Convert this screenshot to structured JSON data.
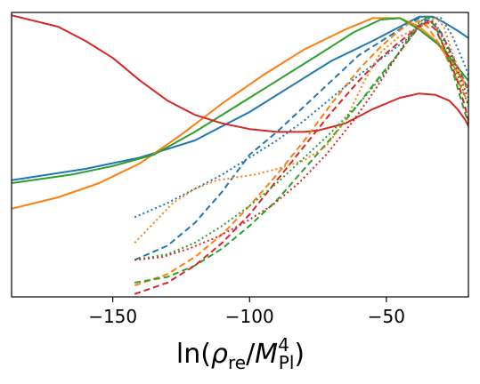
{
  "chart_data": {
    "type": "line",
    "title": "",
    "xlabel": "ln(ρ_re/M_Pl^4)",
    "xlabel_parts": {
      "fn": "ln(",
      "rho": "ρ",
      "rho_sub": "re",
      "slash": "/",
      "M": "M",
      "M_sub": "Pl",
      "M_sup": "4",
      "close": ")"
    },
    "ylabel": "",
    "xlim": [
      -187,
      -20
    ],
    "ylim": [
      0,
      1
    ],
    "xticks": [
      -150,
      -100,
      -50
    ],
    "xtick_labels": [
      "−150",
      "−100",
      "−50"
    ],
    "yticks": [],
    "grid": false,
    "legend": "none",
    "colors": {
      "blue": "#1f77b4",
      "orange": "#ff7f0e",
      "green": "#2ca02c",
      "red": "#d62728"
    },
    "series": [
      {
        "color": "blue",
        "style": "solid",
        "points": [
          [
            -187,
            0.41
          ],
          [
            -160,
            0.45
          ],
          [
            -140,
            0.49
          ],
          [
            -120,
            0.55
          ],
          [
            -100,
            0.65
          ],
          [
            -85,
            0.74
          ],
          [
            -70,
            0.83
          ],
          [
            -55,
            0.9
          ],
          [
            -45,
            0.95
          ],
          [
            -38,
            0.985
          ],
          [
            -33,
            0.985
          ],
          [
            -28,
            0.96
          ],
          [
            -23,
            0.93
          ],
          [
            -20,
            0.91
          ]
        ]
      },
      {
        "color": "orange",
        "style": "solid",
        "points": [
          [
            -187,
            0.31
          ],
          [
            -170,
            0.35
          ],
          [
            -155,
            0.4
          ],
          [
            -140,
            0.47
          ],
          [
            -125,
            0.57
          ],
          [
            -110,
            0.68
          ],
          [
            -95,
            0.78
          ],
          [
            -80,
            0.87
          ],
          [
            -65,
            0.94
          ],
          [
            -55,
            0.98
          ],
          [
            -45,
            0.98
          ],
          [
            -38,
            0.95
          ],
          [
            -32,
            0.9
          ],
          [
            -26,
            0.82
          ],
          [
            -22,
            0.76
          ],
          [
            -20,
            0.74
          ]
        ]
      },
      {
        "color": "green",
        "style": "solid",
        "points": [
          [
            -187,
            0.4
          ],
          [
            -165,
            0.43
          ],
          [
            -150,
            0.46
          ],
          [
            -135,
            0.5
          ],
          [
            -120,
            0.58
          ],
          [
            -105,
            0.67
          ],
          [
            -90,
            0.76
          ],
          [
            -75,
            0.85
          ],
          [
            -62,
            0.93
          ],
          [
            -52,
            0.975
          ],
          [
            -45,
            0.98
          ],
          [
            -38,
            0.94
          ],
          [
            -30,
            0.88
          ],
          [
            -25,
            0.82
          ],
          [
            -20,
            0.76
          ]
        ]
      },
      {
        "color": "red",
        "style": "solid",
        "points": [
          [
            -187,
            0.99
          ],
          [
            -170,
            0.95
          ],
          [
            -160,
            0.9
          ],
          [
            -150,
            0.84
          ],
          [
            -140,
            0.76
          ],
          [
            -130,
            0.69
          ],
          [
            -120,
            0.64
          ],
          [
            -110,
            0.61
          ],
          [
            -100,
            0.59
          ],
          [
            -90,
            0.58
          ],
          [
            -80,
            0.58
          ],
          [
            -75,
            0.585
          ],
          [
            -65,
            0.61
          ],
          [
            -55,
            0.66
          ],
          [
            -45,
            0.7
          ],
          [
            -38,
            0.715
          ],
          [
            -32,
            0.71
          ],
          [
            -27,
            0.69
          ],
          [
            -24,
            0.66
          ],
          [
            -21,
            0.62
          ],
          [
            -20,
            0.6
          ]
        ]
      },
      {
        "color": "blue",
        "style": "dashed",
        "points": [
          [
            -142,
            0.13
          ],
          [
            -130,
            0.18
          ],
          [
            -120,
            0.26
          ],
          [
            -110,
            0.37
          ],
          [
            -100,
            0.5
          ],
          [
            -90,
            0.58
          ],
          [
            -80,
            0.67
          ],
          [
            -70,
            0.76
          ],
          [
            -60,
            0.85
          ],
          [
            -50,
            0.91
          ],
          [
            -42,
            0.96
          ],
          [
            -38,
            0.98
          ],
          [
            -34,
            0.97
          ],
          [
            -30,
            0.93
          ],
          [
            -26,
            0.85
          ],
          [
            -22,
            0.77
          ],
          [
            -20,
            0.72
          ]
        ]
      },
      {
        "color": "orange",
        "style": "dashed",
        "points": [
          [
            -142,
            0.04
          ],
          [
            -130,
            0.08
          ],
          [
            -120,
            0.14
          ],
          [
            -110,
            0.22
          ],
          [
            -100,
            0.32
          ],
          [
            -90,
            0.43
          ],
          [
            -80,
            0.55
          ],
          [
            -70,
            0.68
          ],
          [
            -60,
            0.8
          ],
          [
            -52,
            0.88
          ],
          [
            -46,
            0.93
          ],
          [
            -42,
            0.96
          ],
          [
            -38,
            0.97
          ],
          [
            -35,
            0.95
          ],
          [
            -30,
            0.88
          ],
          [
            -26,
            0.8
          ],
          [
            -22,
            0.72
          ],
          [
            -20,
            0.68
          ]
        ]
      },
      {
        "color": "green",
        "style": "dashed",
        "points": [
          [
            -142,
            0.05
          ],
          [
            -130,
            0.07
          ],
          [
            -120,
            0.11
          ],
          [
            -110,
            0.17
          ],
          [
            -100,
            0.25
          ],
          [
            -90,
            0.34
          ],
          [
            -80,
            0.45
          ],
          [
            -70,
            0.56
          ],
          [
            -60,
            0.68
          ],
          [
            -52,
            0.78
          ],
          [
            -46,
            0.85
          ],
          [
            -42,
            0.9
          ],
          [
            -38,
            0.95
          ],
          [
            -35,
            0.985
          ],
          [
            -32,
            0.95
          ],
          [
            -29,
            0.88
          ],
          [
            -25,
            0.77
          ],
          [
            -22,
            0.67
          ],
          [
            -20,
            0.61
          ]
        ]
      },
      {
        "color": "red",
        "style": "dashed",
        "points": [
          [
            -142,
            0.01
          ],
          [
            -130,
            0.05
          ],
          [
            -120,
            0.11
          ],
          [
            -110,
            0.19
          ],
          [
            -100,
            0.29
          ],
          [
            -90,
            0.41
          ],
          [
            -80,
            0.53
          ],
          [
            -70,
            0.65
          ],
          [
            -60,
            0.76
          ],
          [
            -52,
            0.84
          ],
          [
            -46,
            0.89
          ],
          [
            -42,
            0.92
          ],
          [
            -38,
            0.955
          ],
          [
            -35,
            0.965
          ],
          [
            -32,
            0.94
          ],
          [
            -28,
            0.86
          ],
          [
            -24,
            0.76
          ],
          [
            -21,
            0.66
          ],
          [
            -20,
            0.62
          ]
        ]
      },
      {
        "color": "blue",
        "style": "dotted",
        "points": [
          [
            -142,
            0.28
          ],
          [
            -130,
            0.33
          ],
          [
            -120,
            0.38
          ],
          [
            -110,
            0.43
          ],
          [
            -100,
            0.49
          ],
          [
            -90,
            0.55
          ],
          [
            -80,
            0.62
          ],
          [
            -70,
            0.7
          ],
          [
            -60,
            0.78
          ],
          [
            -50,
            0.85
          ],
          [
            -42,
            0.91
          ],
          [
            -38,
            0.95
          ],
          [
            -34,
            0.985
          ],
          [
            -30,
            0.98
          ],
          [
            -26,
            0.92
          ],
          [
            -22,
            0.83
          ],
          [
            -20,
            0.78
          ]
        ]
      },
      {
        "color": "orange",
        "style": "dotted",
        "points": [
          [
            -142,
            0.19
          ],
          [
            -135,
            0.26
          ],
          [
            -128,
            0.33
          ],
          [
            -120,
            0.38
          ],
          [
            -112,
            0.41
          ],
          [
            -105,
            0.42
          ],
          [
            -98,
            0.43
          ],
          [
            -90,
            0.45
          ],
          [
            -80,
            0.48
          ],
          [
            -72,
            0.53
          ],
          [
            -65,
            0.62
          ],
          [
            -58,
            0.76
          ],
          [
            -52,
            0.86
          ],
          [
            -46,
            0.91
          ],
          [
            -40,
            0.94
          ],
          [
            -35,
            0.96
          ],
          [
            -32,
            0.985
          ],
          [
            -29,
            0.95
          ],
          [
            -26,
            0.86
          ],
          [
            -22,
            0.76
          ],
          [
            -20,
            0.72
          ]
        ]
      },
      {
        "color": "green",
        "style": "dotted",
        "points": [
          [
            -142,
            0.13
          ],
          [
            -130,
            0.15
          ],
          [
            -120,
            0.19
          ],
          [
            -110,
            0.25
          ],
          [
            -100,
            0.32
          ],
          [
            -90,
            0.4
          ],
          [
            -80,
            0.49
          ],
          [
            -70,
            0.58
          ],
          [
            -60,
            0.68
          ],
          [
            -52,
            0.77
          ],
          [
            -46,
            0.85
          ],
          [
            -42,
            0.91
          ],
          [
            -38,
            0.965
          ],
          [
            -35,
            0.985
          ],
          [
            -32,
            0.96
          ],
          [
            -28,
            0.88
          ],
          [
            -24,
            0.78
          ],
          [
            -21,
            0.7
          ],
          [
            -20,
            0.67
          ]
        ]
      },
      {
        "color": "red",
        "style": "dotted",
        "points": [
          [
            -142,
            0.13
          ],
          [
            -132,
            0.14
          ],
          [
            -122,
            0.17
          ],
          [
            -112,
            0.21
          ],
          [
            -102,
            0.26
          ],
          [
            -92,
            0.32
          ],
          [
            -82,
            0.4
          ],
          [
            -72,
            0.5
          ],
          [
            -62,
            0.62
          ],
          [
            -54,
            0.73
          ],
          [
            -48,
            0.82
          ],
          [
            -43,
            0.89
          ],
          [
            -39,
            0.94
          ],
          [
            -35,
            0.97
          ],
          [
            -32,
            0.96
          ],
          [
            -28,
            0.89
          ],
          [
            -24,
            0.8
          ],
          [
            -21,
            0.72
          ],
          [
            -20,
            0.7
          ]
        ]
      }
    ]
  }
}
